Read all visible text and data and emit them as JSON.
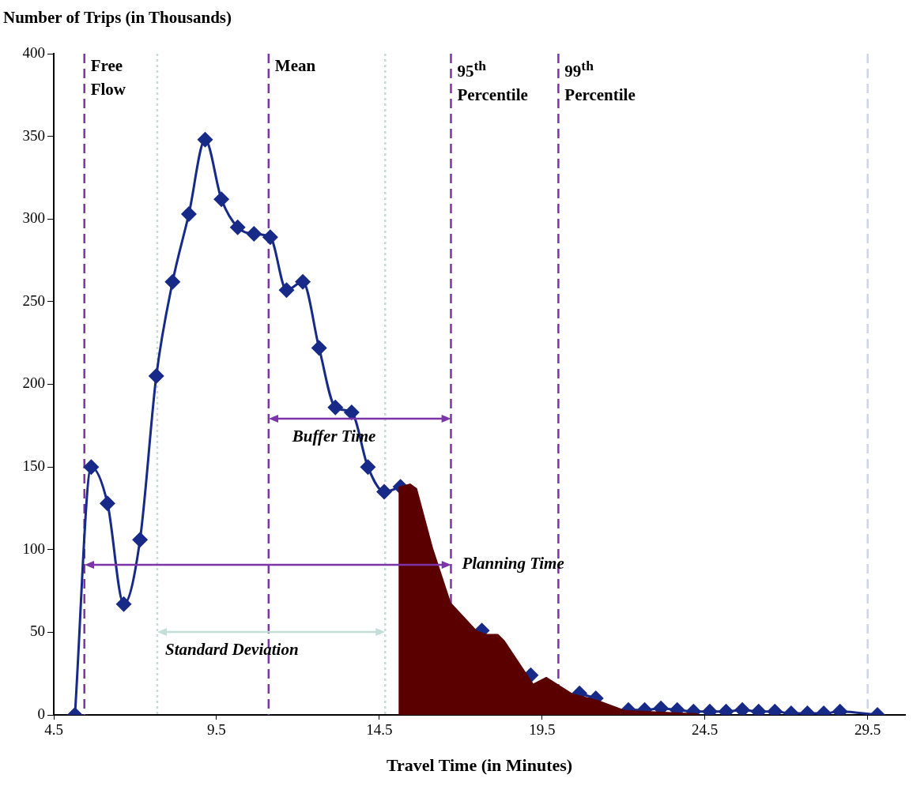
{
  "chart_data": {
    "type": "line",
    "ylabel": "Number of Trips (in Thousands)",
    "xlabel": "Travel Time (in Minutes)",
    "xlim": [
      4.5,
      30.65
    ],
    "xticks": [
      4.5,
      9.5,
      14.5,
      19.5,
      24.5,
      29.5
    ],
    "ylim": [
      0,
      400
    ],
    "yticks": [
      0,
      50,
      100,
      150,
      200,
      250,
      300,
      350,
      400
    ],
    "grid": false,
    "legend": false,
    "series": [
      {
        "color": "#172a88",
        "marker": "diamond",
        "x": [
          5.15,
          5.65,
          6.15,
          6.65,
          7.15,
          7.65,
          8.15,
          8.65,
          9.15,
          9.65,
          10.15,
          10.65,
          11.15,
          11.65,
          12.15,
          12.65,
          13.15,
          13.65,
          14.15,
          14.65,
          15.15,
          15.65,
          16.15,
          16.65,
          17.15,
          17.65,
          18.15,
          18.65,
          19.15,
          19.65,
          20.15,
          20.65,
          21.15,
          21.65,
          22.15,
          22.65,
          23.15,
          23.65,
          24.15,
          24.65,
          25.15,
          25.65,
          26.15,
          26.65,
          27.15,
          27.65,
          28.15,
          28.65,
          29.8
        ],
        "values": [
          0,
          150,
          128,
          67,
          106,
          205,
          262,
          303,
          348,
          312,
          295,
          291,
          289,
          257,
          262,
          222,
          186,
          183,
          150,
          135,
          138,
          null,
          null,
          null,
          null,
          51,
          null,
          null,
          24,
          null,
          null,
          13,
          10,
          null,
          3,
          3,
          4,
          3,
          2,
          2,
          2,
          3,
          2,
          2,
          1,
          1,
          1,
          2,
          0
        ]
      },
      {
        "type": "area",
        "color": "#5a0000",
        "marker": "none",
        "x": [
          15.09,
          15.45,
          15.66,
          16.15,
          16.7,
          17.5,
          17.8,
          18.15,
          18.35,
          19.23,
          19.63,
          20.43,
          21.22,
          22.04,
          24.28,
          24.3
        ],
        "values": [
          138,
          140,
          137,
          101,
          68,
          51,
          49,
          49,
          45,
          19,
          23,
          13,
          9,
          3,
          1,
          0
        ]
      }
    ],
    "ref_lines": [
      {
        "axis": "x",
        "value": 5.44,
        "label": "Free Flow",
        "color": "#7b35a8",
        "line_style": "dashed"
      },
      {
        "axis": "x",
        "value": 7.68,
        "label": null,
        "color": "#c3ded8",
        "line_style": "dotted"
      },
      {
        "axis": "x",
        "value": 11.1,
        "label": "Mean",
        "color": "#7b35a8",
        "line_style": "dashed"
      },
      {
        "axis": "x",
        "value": 14.68,
        "label": null,
        "color": "#c3ded8",
        "line_style": "dotted"
      },
      {
        "axis": "x",
        "value": 16.7,
        "label": "95$^{th}$ Percentile",
        "color": "#7b35a8",
        "line_style": "dashed"
      },
      {
        "axis": "x",
        "value": 20.0,
        "label": "99$^{th}$ Percentile",
        "color": "#7b35a8",
        "line_style": "dashed"
      },
      {
        "axis": "x",
        "value": 29.5,
        "label": null,
        "color": "#d0d4e8",
        "line_style": "dashed"
      }
    ],
    "annotations": [
      {
        "text": "Buffer Time",
        "x": 11.1,
        "y": 179
      },
      {
        "text": "Planning Time",
        "x": 16.7,
        "y": 91
      },
      {
        "text": "Standard Deviation",
        "x": 7.68,
        "y": 50
      }
    ]
  }
}
